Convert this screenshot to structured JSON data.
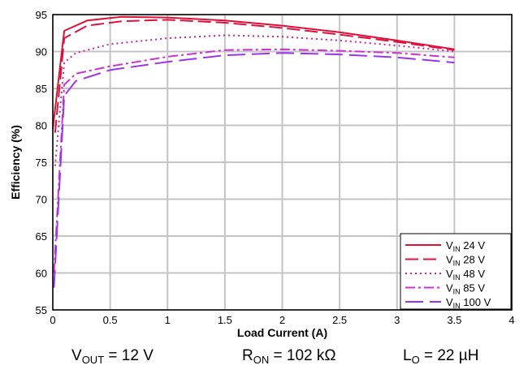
{
  "chart_data": {
    "type": "line",
    "title": "",
    "xlabel": "Load Current (A)",
    "ylabel": "Efficiency (%)",
    "xlim": [
      0,
      4
    ],
    "ylim": [
      55,
      95
    ],
    "xticks": [
      "0",
      "0.5",
      "1",
      "1.5",
      "2",
      "2.5",
      "3",
      "3.5",
      "4"
    ],
    "yticks": [
      "55",
      "60",
      "65",
      "70",
      "75",
      "80",
      "85",
      "90",
      "95"
    ],
    "grid": true,
    "legend_position": "bottom-right",
    "series": [
      {
        "label_main": "V",
        "label_sub": "IN",
        "label_rest": " 24 V",
        "color": "#dd1133",
        "dash": "solid",
        "x": [
          0,
          0.1,
          0.3,
          0.6,
          1.0,
          1.5,
          2.0,
          2.5,
          3.0,
          3.5
        ],
        "y": [
          79.5,
          92.8,
          94.2,
          94.7,
          94.6,
          94.2,
          93.5,
          92.6,
          91.5,
          90.3
        ]
      },
      {
        "label_main": "V",
        "label_sub": "IN",
        "label_rest": " 28 V",
        "color": "#dd1144",
        "dash": "long",
        "x": [
          0.02,
          0.1,
          0.3,
          0.6,
          1.0,
          1.5,
          2.0,
          2.5,
          3.0,
          3.5
        ],
        "y": [
          79.0,
          91.8,
          93.5,
          94.1,
          94.3,
          93.9,
          93.2,
          92.3,
          91.3,
          90.2
        ]
      },
      {
        "label_main": "V",
        "label_sub": "IN",
        "label_rest": " 48 V",
        "color": "#cc2299",
        "dash": "dot",
        "x": [
          0.02,
          0.1,
          0.2,
          0.5,
          1.0,
          1.5,
          2.0,
          2.5,
          3.0,
          3.5
        ],
        "y": [
          74.5,
          88.5,
          89.8,
          91.0,
          91.8,
          92.2,
          92.0,
          91.5,
          90.8,
          90.0
        ]
      },
      {
        "label_main": "V",
        "label_sub": "IN",
        "label_rest": " 85 V",
        "color": "#cc33cc",
        "dash": "dashdot",
        "x": [
          0.01,
          0.1,
          0.2,
          0.5,
          1.0,
          1.5,
          2.0,
          2.5,
          3.0,
          3.5
        ],
        "y": [
          60.0,
          85.5,
          87.0,
          88.0,
          89.3,
          90.2,
          90.3,
          90.1,
          89.8,
          89.2
        ]
      },
      {
        "label_main": "V",
        "label_sub": "IN",
        "label_rest": " 100 V",
        "color": "#9933ee",
        "dash": "longlong",
        "x": [
          0.01,
          0.1,
          0.2,
          0.5,
          1.0,
          1.5,
          2.0,
          2.5,
          3.0,
          3.5
        ],
        "y": [
          58.0,
          84.0,
          86.0,
          87.5,
          88.6,
          89.5,
          89.8,
          89.6,
          89.2,
          88.5
        ]
      }
    ]
  },
  "conditions": [
    {
      "main": "V",
      "sub": "OUT",
      "rest": " = 12 V"
    },
    {
      "main": "R",
      "sub": "ON",
      "rest": " = 102 kΩ"
    },
    {
      "main": "L",
      "sub": "O",
      "rest": " = 22 µH"
    }
  ]
}
